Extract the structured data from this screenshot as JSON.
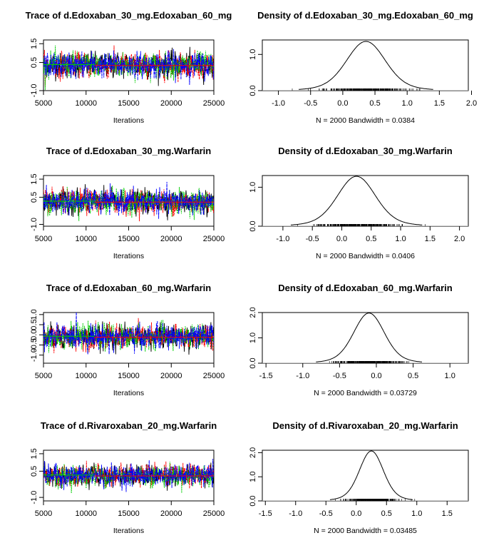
{
  "chart_data": [
    {
      "type": "line",
      "panel": "trace",
      "title": "Trace of d.Edoxaban_30_mg.Edoxaban_60_mg",
      "xlabel": "Iterations",
      "ylabel": "",
      "xlim": [
        5000,
        25000
      ],
      "ylim": [
        -1.0,
        1.7
      ],
      "x_ticks": [
        5000,
        10000,
        15000,
        20000,
        25000
      ],
      "y_ticks": [
        -1.0,
        0.5,
        1.5
      ],
      "y_tick_labels": [
        "-1.0",
        "0.5",
        "1.5"
      ],
      "summary": {
        "mean": 0.36,
        "sd": 0.33
      },
      "series_colors": [
        "#000000",
        "#ff0000",
        "#00cd00",
        "#0000ff"
      ]
    },
    {
      "type": "line",
      "panel": "density",
      "title": "Density of d.Edoxaban_30_mg.Edoxaban_60_mg",
      "xlabel": "N = 2000   Bandwidth = 0.0384",
      "ylabel": "",
      "xlim": [
        -1.25,
        1.95
      ],
      "ylim": [
        0,
        1.4
      ],
      "x_ticks": [
        -1.0,
        -0.5,
        0.0,
        0.5,
        1.0,
        1.5,
        2.0
      ],
      "x_tick_labels": [
        "-1.0",
        "-0.5",
        "0.0",
        "0.5",
        "1.0",
        "1.5",
        "2.0"
      ],
      "y_ticks": [
        0.0,
        1.0
      ],
      "y_tick_labels": [
        "0.0",
        "1.0"
      ],
      "summary": {
        "mean": 0.36,
        "sd": 0.29,
        "peak": 1.36
      }
    },
    {
      "type": "line",
      "panel": "trace",
      "title": "Trace of d.Edoxaban_30_mg.Warfarin",
      "xlabel": "Iterations",
      "ylabel": "",
      "xlim": [
        5000,
        25000
      ],
      "ylim": [
        -1.1,
        1.7
      ],
      "x_ticks": [
        5000,
        10000,
        15000,
        20000,
        25000
      ],
      "y_ticks": [
        -1.0,
        0.5,
        1.5
      ],
      "y_tick_labels": [
        "-1.0",
        "0.5",
        "1.5"
      ],
      "summary": {
        "mean": 0.25,
        "sd": 0.32
      },
      "series_colors": [
        "#000000",
        "#ff0000",
        "#00cd00",
        "#0000ff"
      ]
    },
    {
      "type": "line",
      "panel": "density",
      "title": "Density of d.Edoxaban_30_mg.Warfarin",
      "xlabel": "N = 2000   Bandwidth = 0.0406",
      "ylabel": "",
      "xlim": [
        -1.35,
        2.15
      ],
      "ylim": [
        0,
        1.3
      ],
      "x_ticks": [
        -1.0,
        -0.5,
        0.0,
        0.5,
        1.0,
        1.5,
        2.0
      ],
      "x_tick_labels": [
        "-1.0",
        "-0.5",
        "0.0",
        "0.5",
        "1.0",
        "1.5",
        "2.0"
      ],
      "y_ticks": [
        0.0,
        1.0
      ],
      "y_tick_labels": [
        "0.0",
        "1.0"
      ],
      "summary": {
        "mean": 0.25,
        "sd": 0.31,
        "peak": 1.28
      }
    },
    {
      "type": "line",
      "panel": "trace",
      "title": "Trace of d.Edoxaban_60_mg.Warfarin",
      "xlabel": "Iterations",
      "ylabel": "",
      "xlim": [
        5000,
        25000
      ],
      "ylim": [
        -1.4,
        1.1
      ],
      "x_ticks": [
        5000,
        10000,
        15000,
        20000,
        25000
      ],
      "y_ticks": [
        -1.0,
        -0.5,
        0.0,
        0.5,
        1.0
      ],
      "y_tick_labels": [
        "-1.0",
        "-0.5",
        "0.0",
        "0.5",
        "1.0"
      ],
      "summary": {
        "mean": -0.1,
        "sd": 0.29
      },
      "series_colors": [
        "#000000",
        "#ff0000",
        "#00cd00",
        "#0000ff"
      ]
    },
    {
      "type": "line",
      "panel": "density",
      "title": "Density of d.Edoxaban_60_mg.Warfarin",
      "xlabel": "N = 2000   Bandwidth = 0.03729",
      "ylabel": "",
      "xlim": [
        -1.55,
        1.25
      ],
      "ylim": [
        0,
        2.0
      ],
      "x_ticks": [
        -1.5,
        -1.0,
        -0.5,
        0.0,
        0.5,
        1.0
      ],
      "x_tick_labels": [
        "-1.5",
        "-1.0",
        "-0.5",
        "0.0",
        "0.5",
        "1.0"
      ],
      "y_ticks": [
        0.0,
        1.0,
        2.0
      ],
      "y_tick_labels": [
        "0.0",
        "1.0",
        "2.0"
      ],
      "summary": {
        "mean": -0.1,
        "sd": 0.2,
        "peak": 1.98
      }
    },
    {
      "type": "line",
      "panel": "trace",
      "title": "Trace of d.Rivaroxaban_20_mg.Warfarin",
      "xlabel": "Iterations",
      "ylabel": "",
      "xlim": [
        5000,
        25000
      ],
      "ylim": [
        -1.2,
        1.7
      ],
      "x_ticks": [
        5000,
        10000,
        15000,
        20000,
        25000
      ],
      "y_ticks": [
        -1.0,
        0.5,
        1.5
      ],
      "y_tick_labels": [
        "-1.0",
        "0.5",
        "1.5"
      ],
      "summary": {
        "mean": 0.25,
        "sd": 0.3
      },
      "series_colors": [
        "#000000",
        "#ff0000",
        "#00cd00",
        "#0000ff"
      ]
    },
    {
      "type": "line",
      "panel": "density",
      "title": "Density of d.Rivaroxaban_20_mg.Warfarin",
      "xlabel": "N = 2000   Bandwidth = 0.03485",
      "ylabel": "",
      "xlim": [
        -1.55,
        1.85
      ],
      "ylim": [
        0,
        2.1
      ],
      "x_ticks": [
        -1.5,
        -1.0,
        -0.5,
        0.0,
        0.5,
        1.0,
        1.5
      ],
      "x_tick_labels": [
        "-1.5",
        "-1.0",
        "-0.5",
        "0.0",
        "0.5",
        "1.0",
        "1.5"
      ],
      "y_ticks": [
        0.0,
        1.0,
        2.0
      ],
      "y_tick_labels": [
        "0.0",
        "1.0",
        "2.0"
      ],
      "summary": {
        "mean": 0.25,
        "sd": 0.19,
        "peak": 2.07
      }
    }
  ]
}
